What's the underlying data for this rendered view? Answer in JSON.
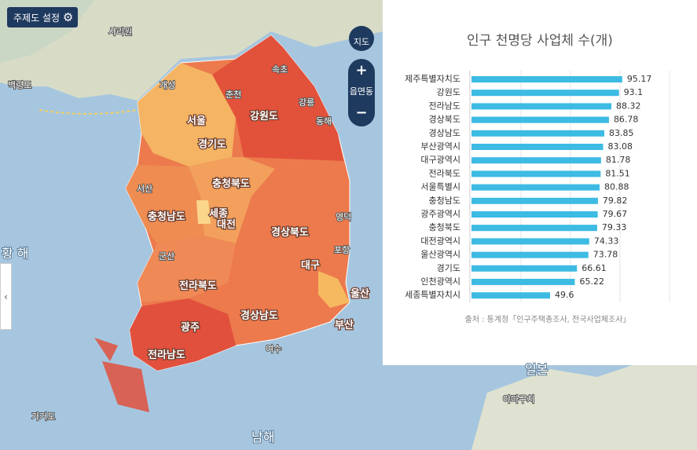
{
  "ui": {
    "theme_button": "주제도 설정",
    "map_button": "지도",
    "zoom_level": "읍면동",
    "zoom_in": "+",
    "zoom_out": "−",
    "collapse": "‹"
  },
  "map_labels": [
    "백령도",
    "개성",
    "사리원",
    "춘천",
    "강릉",
    "동해",
    "강원도",
    "서울",
    "경기도",
    "충청북도",
    "충청남도",
    "세종",
    "대전",
    "경상북도",
    "영덕",
    "포항",
    "대구",
    "전라북도",
    "울산",
    "경상남도",
    "부산",
    "광주",
    "전라남도",
    "서산",
    "군산",
    "여수",
    "황 해",
    "남해",
    "가거도",
    "일본",
    "야마구치",
    "속초"
  ],
  "chart_data": {
    "type": "bar",
    "orientation": "horizontal",
    "title": "인구 천명당 사업체 수(개)",
    "source": "출처 : 통계청「인구주택총조사, 전국사업체조사」",
    "categories": [
      "제주특별자치도",
      "강원도",
      "전라남도",
      "경상북도",
      "경상남도",
      "부산광역시",
      "대구광역시",
      "전라북도",
      "서울특별시",
      "충청남도",
      "광주광역시",
      "충청북도",
      "대전광역시",
      "울산광역시",
      "경기도",
      "인천광역시",
      "세종특별자치시"
    ],
    "values": [
      95.17,
      93.1,
      88.32,
      86.78,
      83.85,
      83.08,
      81.78,
      81.51,
      80.88,
      79.82,
      79.67,
      79.33,
      74.33,
      73.78,
      66.61,
      65.22,
      49.6
    ],
    "color": "#3dbbe3",
    "xlim": [
      0,
      125
    ],
    "xticks": [
      31.25,
      62.5,
      93.75,
      125
    ],
    "grid": true
  }
}
